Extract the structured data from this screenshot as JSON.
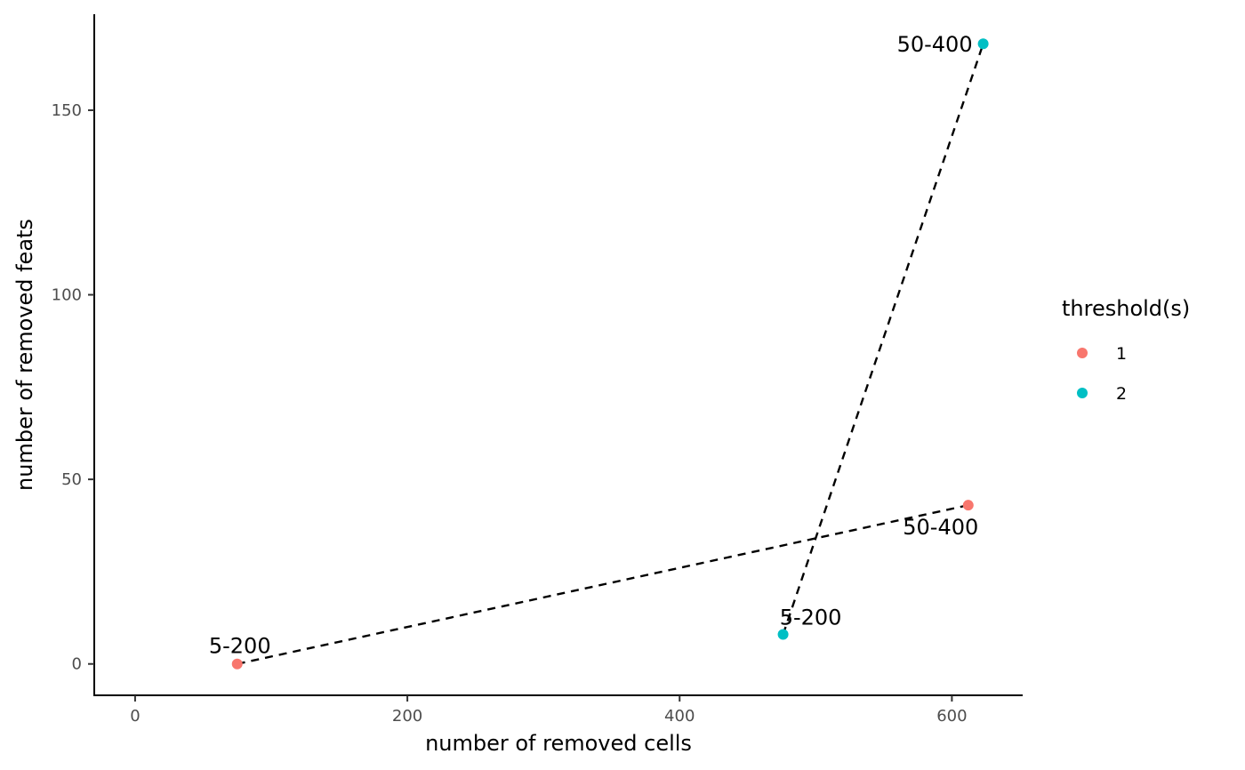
{
  "chart_data": {
    "type": "scatter",
    "xlabel": "number of removed cells",
    "ylabel": "number of removed feats",
    "xlim": [
      -30,
      652
    ],
    "ylim": [
      -8.5,
      176
    ],
    "x_ticks": [
      0,
      200,
      400,
      600
    ],
    "y_ticks": [
      0,
      50,
      100,
      150
    ],
    "grid": false,
    "legend": {
      "title": "threshold(s)",
      "position": "right",
      "entries": [
        {
          "name": "1",
          "color": "#F8766D"
        },
        {
          "name": "2",
          "color": "#00BFC4"
        }
      ]
    },
    "series": [
      {
        "name": "1",
        "color": "#F8766D",
        "points": [
          {
            "x": 75,
            "y": 0,
            "label": "5-200"
          },
          {
            "x": 612,
            "y": 43,
            "label": "50-400"
          }
        ]
      },
      {
        "name": "2",
        "color": "#00BFC4",
        "points": [
          {
            "x": 476,
            "y": 8,
            "label": "5-200"
          },
          {
            "x": 623,
            "y": 168,
            "label": "50-400"
          }
        ]
      }
    ],
    "line_style": "dashed",
    "line_color": "#000000"
  }
}
